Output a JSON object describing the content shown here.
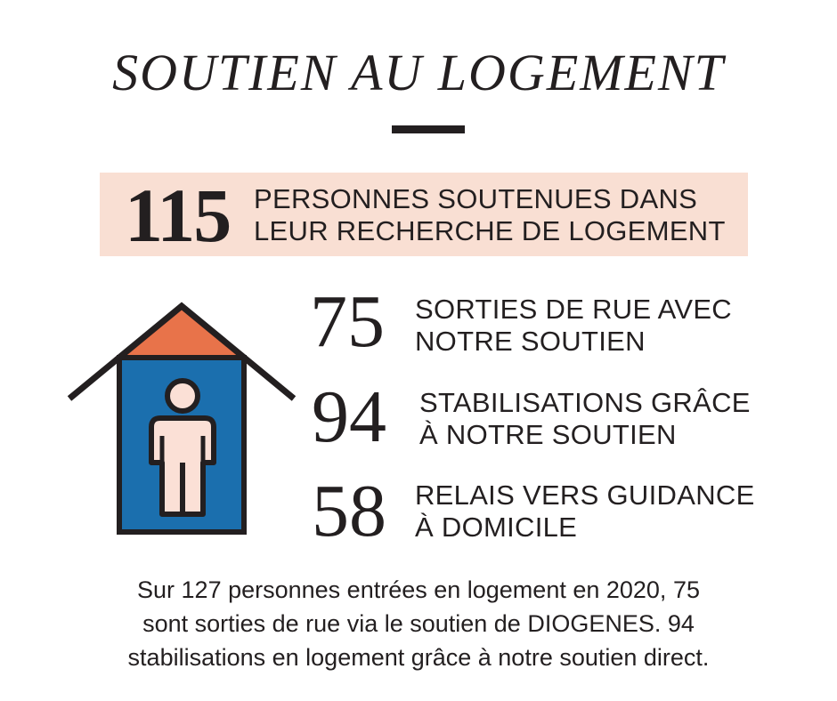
{
  "title": "SOUTIEN AU LOGEMENT",
  "headline": {
    "number": "115",
    "label_line1": "PERSONNES SOUTENUES DANS",
    "label_line2": "LEUR RECHERCHE DE LOGEMENT"
  },
  "stats": [
    {
      "number": "75",
      "line1": "SORTIES DE RUE AVEC",
      "line2": "NOTRE SOUTIEN"
    },
    {
      "number": "94",
      "line1": "STABILISATIONS GRÂCE",
      "line2": "À NOTRE SOUTIEN"
    },
    {
      "number": "58",
      "line1": "RELAIS VERS GUIDANCE",
      "line2": "À DOMICILE"
    }
  ],
  "footer": {
    "line1": "Sur 127 personnes entrées en logement en 2020,  75",
    "line2": "sont sorties de rue via le soutien de DIOGENES. 94",
    "line3": "stabilisations en logement grâce à notre soutien direct."
  },
  "colors": {
    "highlight": "#f9dfd3",
    "roof": "#e8734a",
    "wall": "#1b6fae",
    "person": "#fbe0d6",
    "ink": "#231f20"
  },
  "icons": [
    "house-icon",
    "person-icon"
  ]
}
